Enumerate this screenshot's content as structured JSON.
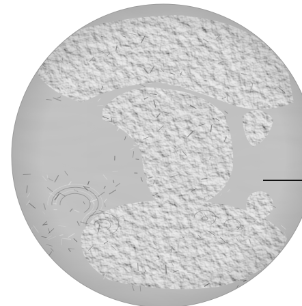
{
  "map": {
    "projection": "orthographic",
    "rendering": "shaded-relief",
    "colors": {
      "background": "#ffffff",
      "globe_base": "#a9a9a9",
      "ocean_flat": "#a4a4a4",
      "relief_light": "#e2e2e2",
      "relief_shadow": "#5e5e5e",
      "pointer_line": "#111111"
    },
    "pointer": {
      "shape": "horizontal-line",
      "direction": "east"
    }
  }
}
